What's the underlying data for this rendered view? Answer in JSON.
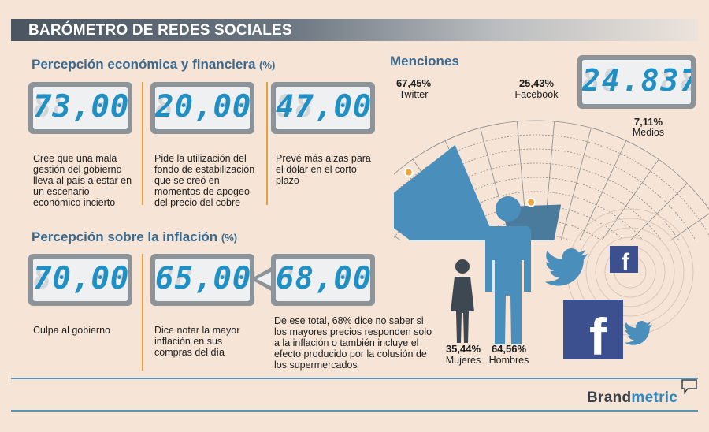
{
  "title": "BARÓMETRO DE REDES SOCIALES",
  "economic": {
    "title": "Percepción económica y financiera",
    "unit": "(%)",
    "items": [
      {
        "value": "73,00",
        "text": "Cree que una mala gestión del gobierno lleva al país a estar en un escenario económico incierto"
      },
      {
        "value": "20,00",
        "text": "Pide la utilización del fondo de estabilización que se creó en momentos de apogeo del precio del cobre"
      },
      {
        "value": "47,00",
        "text": "Prevé más alzas para el dólar en el corto plazo"
      }
    ]
  },
  "inflation": {
    "title": "Percepción sobre la inflación",
    "unit": "(%)",
    "items": [
      {
        "value": "70,00",
        "text": "Culpa al gobierno"
      },
      {
        "value": "65,00",
        "text": "Dice notar la mayor inflación en sus compras del día"
      },
      {
        "value": "68,00",
        "text": "De ese total, 68% dice no saber si los mayores precios responden solo a la inflación o también incluye el efecto producido por la colusión de los supermercados"
      }
    ]
  },
  "mentions": {
    "title": "Menciones",
    "total": "24.837",
    "sources": [
      {
        "pct": "67,45%",
        "label": "Twitter"
      },
      {
        "pct": "25,43%",
        "label": "Facebook"
      },
      {
        "pct": "7,11%",
        "label": "Medios"
      }
    ]
  },
  "gender": {
    "women": {
      "pct": "35,44%",
      "label": "Mujeres"
    },
    "men": {
      "pct": "64,56%",
      "label": "Hombres"
    }
  },
  "brand": {
    "part1": "Brand",
    "part2": "metric"
  },
  "colors": {
    "accent_blue": "#2e88c0",
    "figure_blue": "#4a8fbb",
    "figure_dark": "#3d4852",
    "separator_orange": "#e3a23a",
    "lcd_digits": "#1f8fc4"
  },
  "icons": [
    "twitter-bird-icon",
    "facebook-icon",
    "person-icon",
    "speech-bubble-icon"
  ],
  "chart_data": {
    "type": "bar",
    "categories": [
      "Twitter",
      "Facebook",
      "Medios"
    ],
    "values": [
      67.45,
      25.43,
      7.11
    ]
  }
}
